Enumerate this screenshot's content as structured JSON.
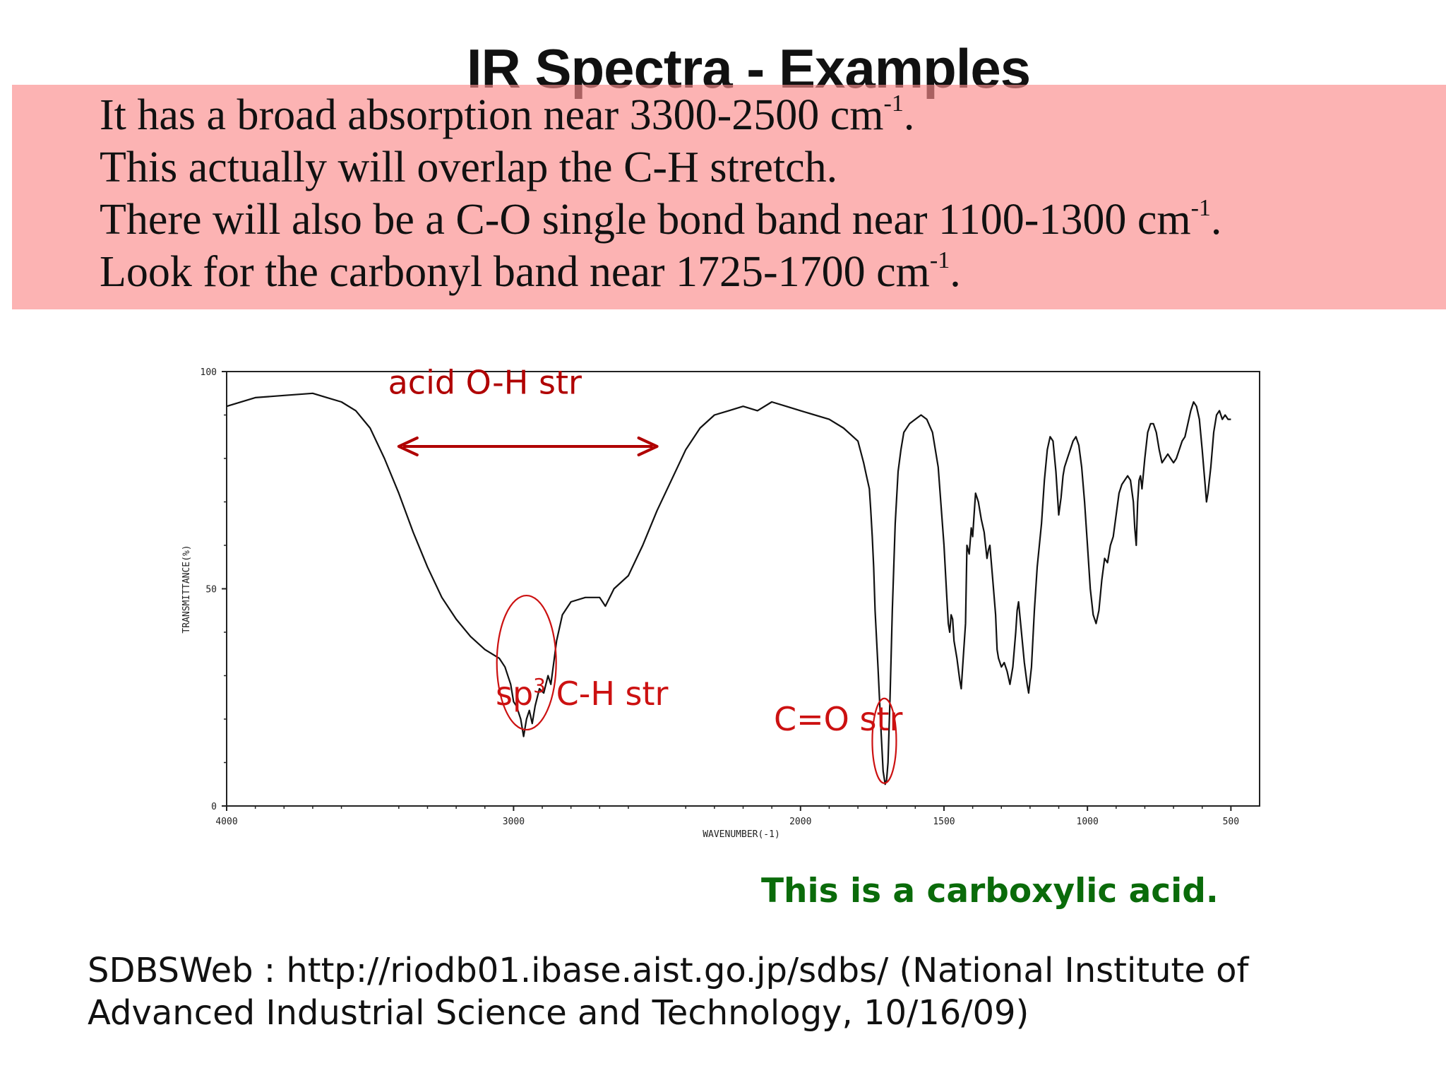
{
  "slide": {
    "title": "IR Spectra - Examples",
    "notes": [
      {
        "text": "It has a broad absorption near 3300-2500 cm",
        "sup": "-1",
        "end": "."
      },
      {
        "text": "This actually will overlap the C-H stretch.",
        "sup": "",
        "end": ""
      },
      {
        "text": "There will also be a C-O single bond band near 1100-1300 cm",
        "sup": "-1",
        "end": "."
      },
      {
        "text": "Look for the carbonyl band near 1725-1700 cm",
        "sup": "-1",
        "end": "."
      }
    ],
    "note_box_color": "#fa8c8c",
    "conclusion": "This is a carboxylic acid.",
    "conclusion_color": "#0a6b0a",
    "source": "SDBSWeb : http://riodb01.ibase.aist.go.jp/sdbs/ (National Institute of Advanced Industrial Science and Technology, 10/16/09)"
  },
  "chart_data": {
    "type": "line",
    "xlabel": "WAVENUMBER(-1)",
    "ylabel": "TRANSMITTANCE(%)",
    "xlim": [
      4000,
      400
    ],
    "ylim": [
      0,
      100
    ],
    "x_tick_labels": [
      "4000",
      "3000",
      "2000",
      "1500",
      "1000",
      "500"
    ],
    "y_tick_labels": [
      "100",
      "50",
      "0"
    ],
    "grid": false,
    "series": [
      {
        "values": [
          [
            4000,
            92
          ],
          [
            3900,
            94
          ],
          [
            3800,
            94.5
          ],
          [
            3700,
            95
          ],
          [
            3650,
            94
          ],
          [
            3600,
            93
          ],
          [
            3550,
            91
          ],
          [
            3500,
            87
          ],
          [
            3450,
            80
          ],
          [
            3400,
            72
          ],
          [
            3350,
            63
          ],
          [
            3300,
            55
          ],
          [
            3250,
            48
          ],
          [
            3200,
            43
          ],
          [
            3150,
            39
          ],
          [
            3100,
            36
          ],
          [
            3050,
            34
          ],
          [
            3030,
            32
          ],
          [
            3010,
            28
          ],
          [
            3000,
            24
          ],
          [
            2990,
            23
          ],
          [
            2975,
            20
          ],
          [
            2965,
            16
          ],
          [
            2955,
            20
          ],
          [
            2945,
            22
          ],
          [
            2935,
            19
          ],
          [
            2925,
            23
          ],
          [
            2910,
            27
          ],
          [
            2895,
            26
          ],
          [
            2880,
            30
          ],
          [
            2870,
            28
          ],
          [
            2860,
            33
          ],
          [
            2850,
            38
          ],
          [
            2830,
            44
          ],
          [
            2800,
            47
          ],
          [
            2750,
            48
          ],
          [
            2700,
            48
          ],
          [
            2680,
            46
          ],
          [
            2650,
            50
          ],
          [
            2600,
            53
          ],
          [
            2550,
            60
          ],
          [
            2500,
            68
          ],
          [
            2450,
            75
          ],
          [
            2400,
            82
          ],
          [
            2350,
            87
          ],
          [
            2300,
            90
          ],
          [
            2250,
            91
          ],
          [
            2200,
            92
          ],
          [
            2150,
            91
          ],
          [
            2100,
            93
          ],
          [
            2050,
            92
          ],
          [
            2000,
            91
          ],
          [
            1900,
            89
          ],
          [
            1850,
            87
          ],
          [
            1800,
            84
          ],
          [
            1780,
            79
          ],
          [
            1770,
            76
          ],
          [
            1760,
            73
          ],
          [
            1755,
            68
          ],
          [
            1750,
            62
          ],
          [
            1745,
            55
          ],
          [
            1740,
            45
          ],
          [
            1730,
            32
          ],
          [
            1720,
            18
          ],
          [
            1712,
            8
          ],
          [
            1705,
            5
          ],
          [
            1700,
            6
          ],
          [
            1695,
            10
          ],
          [
            1688,
            25
          ],
          [
            1680,
            45
          ],
          [
            1670,
            65
          ],
          [
            1660,
            77
          ],
          [
            1650,
            82
          ],
          [
            1640,
            86
          ],
          [
            1620,
            88
          ],
          [
            1600,
            89
          ],
          [
            1580,
            90
          ],
          [
            1560,
            89
          ],
          [
            1540,
            86
          ],
          [
            1520,
            78
          ],
          [
            1500,
            60
          ],
          [
            1490,
            48
          ],
          [
            1485,
            42
          ],
          [
            1480,
            40
          ],
          [
            1475,
            44
          ],
          [
            1470,
            43
          ],
          [
            1465,
            38
          ],
          [
            1455,
            34
          ],
          [
            1445,
            29
          ],
          [
            1440,
            27
          ],
          [
            1435,
            32
          ],
          [
            1425,
            42
          ],
          [
            1420,
            60
          ],
          [
            1412,
            58
          ],
          [
            1405,
            64
          ],
          [
            1400,
            62
          ],
          [
            1395,
            67
          ],
          [
            1390,
            72
          ],
          [
            1380,
            70
          ],
          [
            1370,
            66
          ],
          [
            1360,
            63
          ],
          [
            1350,
            57
          ],
          [
            1345,
            59
          ],
          [
            1340,
            60
          ],
          [
            1330,
            52
          ],
          [
            1320,
            44
          ],
          [
            1315,
            36
          ],
          [
            1310,
            34
          ],
          [
            1300,
            32
          ],
          [
            1290,
            33
          ],
          [
            1280,
            31
          ],
          [
            1270,
            28
          ],
          [
            1260,
            32
          ],
          [
            1250,
            40
          ],
          [
            1245,
            45
          ],
          [
            1240,
            47
          ],
          [
            1230,
            40
          ],
          [
            1220,
            33
          ],
          [
            1210,
            28
          ],
          [
            1205,
            26
          ],
          [
            1195,
            32
          ],
          [
            1185,
            45
          ],
          [
            1175,
            55
          ],
          [
            1160,
            65
          ],
          [
            1150,
            75
          ],
          [
            1140,
            82
          ],
          [
            1130,
            85
          ],
          [
            1120,
            84
          ],
          [
            1110,
            77
          ],
          [
            1100,
            67
          ],
          [
            1092,
            71
          ],
          [
            1085,
            76
          ],
          [
            1080,
            78
          ],
          [
            1070,
            80
          ],
          [
            1060,
            82
          ],
          [
            1050,
            84
          ],
          [
            1040,
            85
          ],
          [
            1030,
            83
          ],
          [
            1020,
            78
          ],
          [
            1010,
            70
          ],
          [
            1000,
            60
          ],
          [
            990,
            50
          ],
          [
            980,
            44
          ],
          [
            970,
            42
          ],
          [
            960,
            45
          ],
          [
            950,
            52
          ],
          [
            940,
            57
          ],
          [
            930,
            56
          ],
          [
            920,
            60
          ],
          [
            910,
            62
          ],
          [
            900,
            67
          ],
          [
            890,
            72
          ],
          [
            880,
            74
          ],
          [
            870,
            75
          ],
          [
            860,
            76
          ],
          [
            850,
            75
          ],
          [
            840,
            70
          ],
          [
            835,
            64
          ],
          [
            830,
            60
          ],
          [
            825,
            70
          ],
          [
            820,
            75
          ],
          [
            815,
            76
          ],
          [
            810,
            73
          ],
          [
            800,
            80
          ],
          [
            790,
            86
          ],
          [
            780,
            88
          ],
          [
            770,
            88
          ],
          [
            760,
            86
          ],
          [
            750,
            82
          ],
          [
            740,
            79
          ],
          [
            730,
            80
          ],
          [
            720,
            81
          ],
          [
            710,
            80
          ],
          [
            700,
            79
          ],
          [
            690,
            80
          ],
          [
            680,
            82
          ],
          [
            670,
            84
          ],
          [
            660,
            85
          ],
          [
            650,
            88
          ],
          [
            640,
            91
          ],
          [
            630,
            93
          ],
          [
            620,
            92
          ],
          [
            610,
            89
          ],
          [
            600,
            82
          ],
          [
            590,
            74
          ],
          [
            585,
            70
          ],
          [
            580,
            72
          ],
          [
            570,
            78
          ],
          [
            560,
            86
          ],
          [
            550,
            90
          ],
          [
            540,
            91
          ],
          [
            530,
            89
          ],
          [
            520,
            90
          ],
          [
            510,
            89
          ],
          [
            500,
            89
          ]
        ]
      }
    ],
    "annotations": [
      {
        "text": "acid O-H str",
        "x": 3100,
        "y": 98,
        "color": "#b00000",
        "arrow": [
          3400,
          2500
        ]
      },
      {
        "text": "sp",
        "sup": "3",
        "text_after": " C-H str",
        "x": 2850,
        "y": 27,
        "color": "#cc1111",
        "ellipse_center": [
          2955,
          33
        ]
      },
      {
        "text": "C=O str",
        "x": 1550,
        "y": 21,
        "color": "#cc1111",
        "ellipse_center": [
          1708,
          15
        ]
      }
    ]
  }
}
